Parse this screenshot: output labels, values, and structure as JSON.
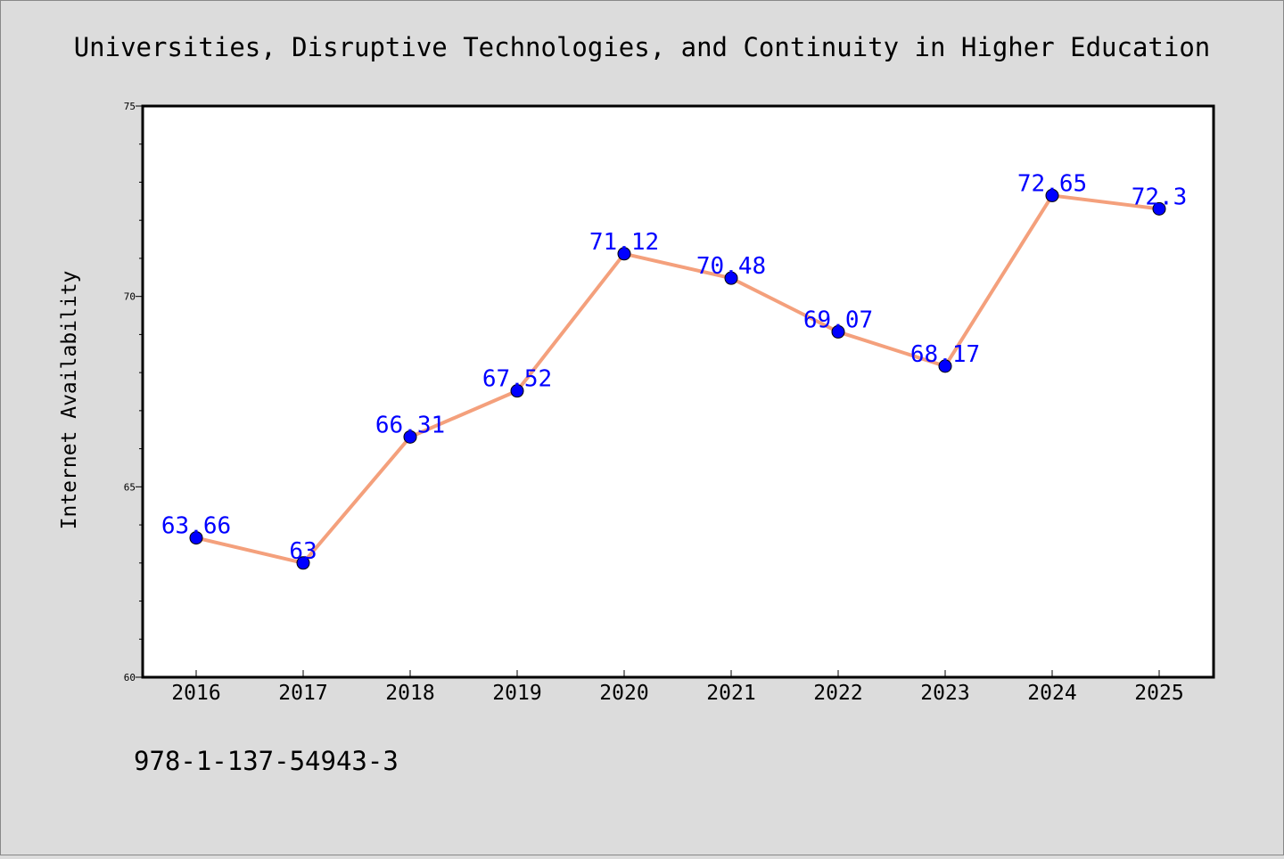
{
  "chart_data": {
    "type": "line",
    "title": "Universities, Disruptive Technologies, and Continuity in Higher Education",
    "xlabel": "",
    "ylabel": "Internet Availability",
    "categories": [
      "2016",
      "2017",
      "2018",
      "2019",
      "2020",
      "2021",
      "2022",
      "2023",
      "2024",
      "2025"
    ],
    "series": [
      {
        "values": [
          63.66,
          63,
          66.31,
          67.52,
          71.12,
          70.48,
          69.07,
          68.17,
          72.65,
          72.3
        ],
        "labels": [
          "63.66",
          "63",
          "66.31",
          "67.52",
          "71.12",
          "70.48",
          "69.07",
          "68.17",
          "72.65",
          "72.3"
        ]
      }
    ],
    "ylim": [
      60,
      75
    ],
    "yticks": [
      "60",
      "65",
      "70",
      "75"
    ],
    "grid": false,
    "legend": "none",
    "colors": {
      "background": "#dcdcdc",
      "plot_background": "#ffffff",
      "line": "#f4a07c",
      "marker": "#0000ff",
      "label": "#0000ff"
    }
  },
  "footer": {
    "isbn": "978-1-137-54943-3"
  }
}
